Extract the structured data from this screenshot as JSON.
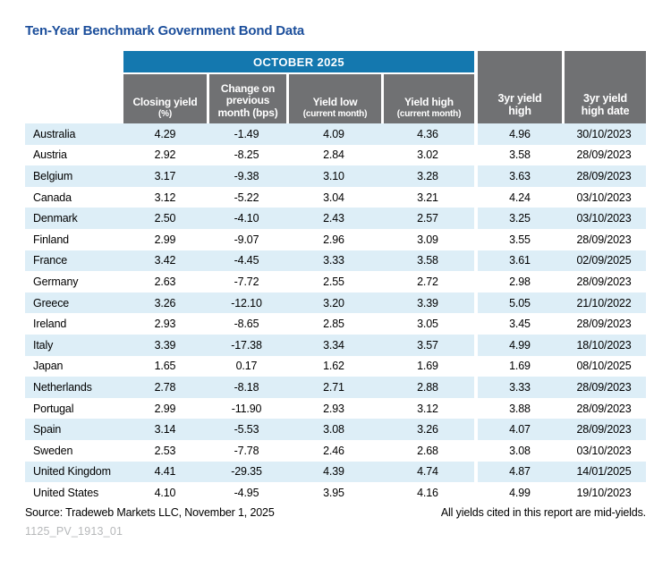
{
  "title": "Ten-Year Benchmark Government Bond Data",
  "colors": {
    "title": "#1b4e9b",
    "banner_bg": "#1478af",
    "header_bg": "#707173",
    "stripe_bg": "#ddeef7",
    "figure_id": "#b6b8ba"
  },
  "table": {
    "banner": "OCTOBER 2025",
    "columns": [
      {
        "main": "Closing yield",
        "sub": "(%)"
      },
      {
        "main": "Change on previous month (bps)",
        "sub": ""
      },
      {
        "main": "Yield low",
        "sub": "(current month)"
      },
      {
        "main": "Yield high",
        "sub": "(current month)"
      },
      {
        "main": "3yr yield high",
        "sub": ""
      },
      {
        "main": "3yr yield high date",
        "sub": ""
      }
    ],
    "rows": [
      {
        "country": "Australia",
        "values": [
          "4.29",
          "-1.49",
          "4.09",
          "4.36",
          "4.96",
          "30/10/2023"
        ]
      },
      {
        "country": "Austria",
        "values": [
          "2.92",
          "-8.25",
          "2.84",
          "3.02",
          "3.58",
          "28/09/2023"
        ]
      },
      {
        "country": "Belgium",
        "values": [
          "3.17",
          "-9.38",
          "3.10",
          "3.28",
          "3.63",
          "28/09/2023"
        ]
      },
      {
        "country": "Canada",
        "values": [
          "3.12",
          "-5.22",
          "3.04",
          "3.21",
          "4.24",
          "03/10/2023"
        ]
      },
      {
        "country": "Denmark",
        "values": [
          "2.50",
          "-4.10",
          "2.43",
          "2.57",
          "3.25",
          "03/10/2023"
        ]
      },
      {
        "country": "Finland",
        "values": [
          "2.99",
          "-9.07",
          "2.96",
          "3.09",
          "3.55",
          "28/09/2023"
        ]
      },
      {
        "country": "France",
        "values": [
          "3.42",
          "-4.45",
          "3.33",
          "3.58",
          "3.61",
          "02/09/2025"
        ]
      },
      {
        "country": "Germany",
        "values": [
          "2.63",
          "-7.72",
          "2.55",
          "2.72",
          "2.98",
          "28/09/2023"
        ]
      },
      {
        "country": "Greece",
        "values": [
          "3.26",
          "-12.10",
          "3.20",
          "3.39",
          "5.05",
          "21/10/2022"
        ]
      },
      {
        "country": "Ireland",
        "values": [
          "2.93",
          "-8.65",
          "2.85",
          "3.05",
          "3.45",
          "28/09/2023"
        ]
      },
      {
        "country": "Italy",
        "values": [
          "3.39",
          "-17.38",
          "3.34",
          "3.57",
          "4.99",
          "18/10/2023"
        ]
      },
      {
        "country": "Japan",
        "values": [
          "1.65",
          "0.17",
          "1.62",
          "1.69",
          "1.69",
          "08/10/2025"
        ]
      },
      {
        "country": "Netherlands",
        "values": [
          "2.78",
          "-8.18",
          "2.71",
          "2.88",
          "3.33",
          "28/09/2023"
        ]
      },
      {
        "country": "Portugal",
        "values": [
          "2.99",
          "-11.90",
          "2.93",
          "3.12",
          "3.88",
          "28/09/2023"
        ]
      },
      {
        "country": "Spain",
        "values": [
          "3.14",
          "-5.53",
          "3.08",
          "3.26",
          "4.07",
          "28/09/2023"
        ]
      },
      {
        "country": "Sweden",
        "values": [
          "2.53",
          "-7.78",
          "2.46",
          "2.68",
          "3.08",
          "03/10/2023"
        ]
      },
      {
        "country": "United Kingdom",
        "values": [
          "4.41",
          "-29.35",
          "4.39",
          "4.74",
          "4.87",
          "14/01/2025"
        ]
      },
      {
        "country": "United States",
        "values": [
          "4.10",
          "-4.95",
          "3.95",
          "4.16",
          "4.99",
          "19/10/2023"
        ]
      }
    ]
  },
  "chart_data": {
    "type": "table",
    "title": "Ten-Year Benchmark Government Bond Data",
    "group_header": "OCTOBER 2025",
    "columns": [
      "Closing yield (%)",
      "Change on previous month (bps)",
      "Yield low (current month)",
      "Yield high (current month)",
      "3yr yield high",
      "3yr yield high date"
    ],
    "categories": [
      "Australia",
      "Austria",
      "Belgium",
      "Canada",
      "Denmark",
      "Finland",
      "France",
      "Germany",
      "Greece",
      "Ireland",
      "Italy",
      "Japan",
      "Netherlands",
      "Portugal",
      "Spain",
      "Sweden",
      "United Kingdom",
      "United States"
    ],
    "series": [
      {
        "name": "Closing yield (%)",
        "values": [
          4.29,
          2.92,
          3.17,
          3.12,
          2.5,
          2.99,
          3.42,
          2.63,
          3.26,
          2.93,
          3.39,
          1.65,
          2.78,
          2.99,
          3.14,
          2.53,
          4.41,
          4.1
        ]
      },
      {
        "name": "Change on previous month (bps)",
        "values": [
          -1.49,
          -8.25,
          -9.38,
          -5.22,
          -4.1,
          -9.07,
          -4.45,
          -7.72,
          -12.1,
          -8.65,
          -17.38,
          0.17,
          -8.18,
          -11.9,
          -5.53,
          -7.78,
          -29.35,
          -4.95
        ]
      },
      {
        "name": "Yield low (current month)",
        "values": [
          4.09,
          2.84,
          3.1,
          3.04,
          2.43,
          2.96,
          3.33,
          2.55,
          3.2,
          2.85,
          3.34,
          1.62,
          2.71,
          2.93,
          3.08,
          2.46,
          4.39,
          3.95
        ]
      },
      {
        "name": "Yield high (current month)",
        "values": [
          4.36,
          3.02,
          3.28,
          3.21,
          2.57,
          3.09,
          3.58,
          2.72,
          3.39,
          3.05,
          3.57,
          1.69,
          2.88,
          3.12,
          3.26,
          2.68,
          4.74,
          4.16
        ]
      },
      {
        "name": "3yr yield high",
        "values": [
          4.96,
          3.58,
          3.63,
          4.24,
          3.25,
          3.55,
          3.61,
          2.98,
          5.05,
          3.45,
          4.99,
          1.69,
          3.33,
          3.88,
          4.07,
          3.08,
          4.87,
          4.99
        ]
      },
      {
        "name": "3yr yield high date",
        "values": [
          "30/10/2023",
          "28/09/2023",
          "28/09/2023",
          "03/10/2023",
          "03/10/2023",
          "28/09/2023",
          "02/09/2025",
          "28/09/2023",
          "21/10/2022",
          "28/09/2023",
          "18/10/2023",
          "08/10/2025",
          "28/09/2023",
          "28/09/2023",
          "28/09/2023",
          "03/10/2023",
          "14/01/2025",
          "19/10/2023"
        ]
      }
    ]
  },
  "footer": {
    "source": "Source: Tradeweb Markets LLC, November 1, 2025",
    "note": "All yields cited in this report are mid-yields.",
    "figure_id": "1125_PV_1913_01"
  }
}
